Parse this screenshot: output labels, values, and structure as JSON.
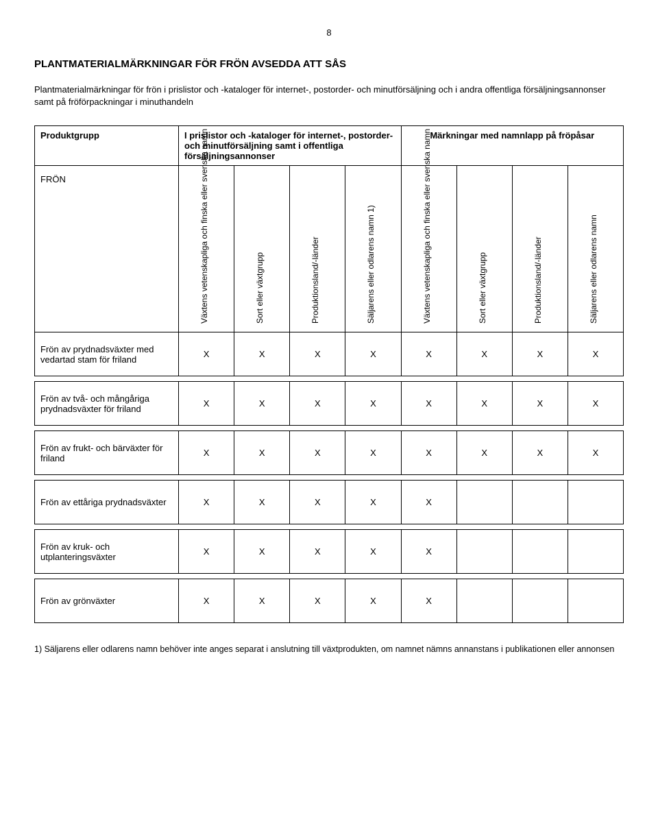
{
  "page_number": "8",
  "title": "PLANTMATERIALMÄRKNINGAR FÖR FRÖN AVSEDDA ATT SÅS",
  "intro": "Plantmaterialmärkningar för frön i prislistor och -kataloger för internet-, postorder- och minutförsäljning och i andra offentliga försäljningsannonser samt på fröförpackningar i minuthandeln",
  "header": {
    "produktgrupp": "Produktgrupp",
    "group_a": "I prislistor och -kataloger för internet-, postorder- och minutförsäljning samt i offentliga försäljningsannonser",
    "group_b": "Märkningar med namnlapp på fröpåsar"
  },
  "columns": [
    "Växtens vetenskapliga och finska eller svenska namn",
    "Sort eller växtgrupp",
    "Produktionsland/-länder",
    "Säljarens eller odlarens namn 1)",
    "Växtens vetenskapliga och finska eller svenska namn",
    "Sort eller växtgrupp",
    "Produktionsland/-länder",
    "Säljarens eller odlarens namn"
  ],
  "fron_label": "FRÖN",
  "rows": [
    {
      "label": "Frön av prydnadsväxter med vedartad stam för friland",
      "cells": [
        "X",
        "X",
        "X",
        "X",
        "X",
        "X",
        "X",
        "X"
      ]
    },
    {
      "label": "Frön av två- och mångåriga prydnadsväxter för friland",
      "cells": [
        "X",
        "X",
        "X",
        "X",
        "X",
        "X",
        "X",
        "X"
      ]
    },
    {
      "label": "Frön av frukt- och bärväxter för friland",
      "cells": [
        "X",
        "X",
        "X",
        "X",
        "X",
        "X",
        "X",
        "X"
      ]
    },
    {
      "label": "Frön av ettåriga prydnadsväxter",
      "cells": [
        "X",
        "X",
        "X",
        "X",
        "X",
        "",
        "",
        ""
      ]
    },
    {
      "label": "Frön av kruk- och utplanteringsväxter",
      "cells": [
        "X",
        "X",
        "X",
        "X",
        "X",
        "",
        "",
        ""
      ]
    },
    {
      "label": "Frön av grönväxter",
      "cells": [
        "X",
        "X",
        "X",
        "X",
        "X",
        "",
        "",
        ""
      ]
    }
  ],
  "footnote": "1) Säljarens eller odlarens namn behöver inte anges separat i anslutning till växtprodukten, om namnet nämns annanstans i publikationen eller annonsen"
}
